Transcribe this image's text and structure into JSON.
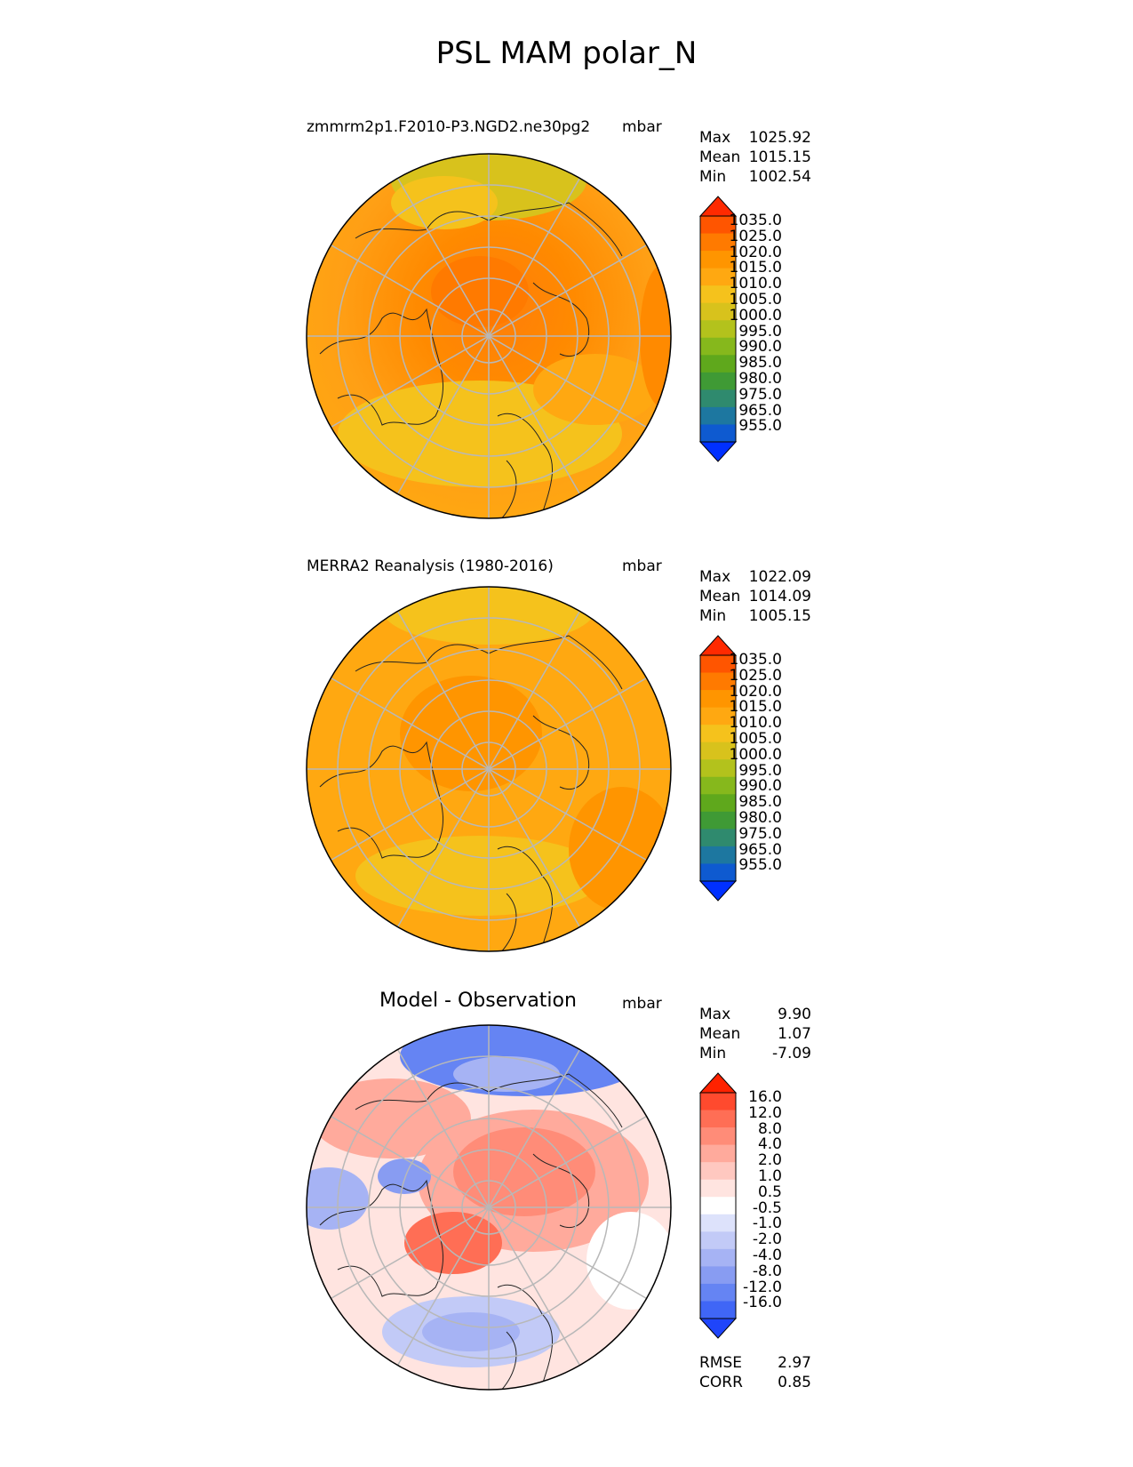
{
  "figure": {
    "title": "PSL MAM polar_N"
  },
  "panels": [
    {
      "id": "test",
      "title_left": "zmmrm2p1.F2010-P3.NGD2.ne30pg2",
      "title_right": "mbar",
      "stats": {
        "max_label": "Max",
        "max": "1025.92",
        "mean_label": "Mean",
        "mean": "1015.15",
        "min_label": "Min",
        "min": "1002.54"
      }
    },
    {
      "id": "reference",
      "title_left": "MERRA2 Reanalysis (1980-2016)",
      "title_right": "mbar",
      "stats": {
        "max_label": "Max",
        "max": "1022.09",
        "mean_label": "Mean",
        "mean": "1014.09",
        "min_label": "Min",
        "min": "1005.15"
      }
    },
    {
      "id": "diff",
      "title_center": "Model - Observation",
      "title_right": "mbar",
      "stats": {
        "max_label": "Max",
        "max": "9.90",
        "mean_label": "Mean",
        "mean": "1.07",
        "min_label": "Min",
        "min": "-7.09"
      },
      "metrics": {
        "rmse_label": "RMSE",
        "rmse": "2.97",
        "corr_label": "CORR",
        "corr": "0.85"
      }
    }
  ],
  "colorbars": {
    "field": {
      "labels": [
        "1035.0",
        "1025.0",
        "1020.0",
        "1015.0",
        "1010.0",
        "1005.0",
        "1000.0",
        "995.0",
        "990.0",
        "985.0",
        "980.0",
        "975.0",
        "965.0",
        "955.0"
      ],
      "colors": [
        "#ff2a00",
        "#ff5500",
        "#ff7a00",
        "#ff9500",
        "#ffa811",
        "#f5c21c",
        "#d8c21c",
        "#b3c21c",
        "#86b81c",
        "#5fa81c",
        "#3f9a35",
        "#2f8a6e",
        "#1d77a0",
        "#0e5ad0",
        "#0030ff"
      ]
    },
    "diff": {
      "labels": [
        "16.0",
        "12.0",
        "8.0",
        "4.0",
        "2.0",
        "1.0",
        "0.5",
        "-0.5",
        "-1.0",
        "-2.0",
        "-4.0",
        "-8.0",
        "-12.0",
        "-16.0"
      ],
      "colors": [
        "#ff2200",
        "#ff4a2e",
        "#ff6e55",
        "#ff8c78",
        "#ffaa9c",
        "#ffc8c0",
        "#ffe4e0",
        "#ffffff",
        "#dde2fb",
        "#c2caf7",
        "#a6b3f4",
        "#889cf2",
        "#6584f3",
        "#4066f6",
        "#1f45fa"
      ]
    }
  },
  "chart_data": [
    {
      "type": "heatmap",
      "title": "zmmrm2p1.F2010-P3.NGD2.ne30pg2",
      "projection": "north polar stereographic",
      "variable": "PSL",
      "season": "MAM",
      "units": "mbar",
      "levels": [
        955,
        965,
        975,
        980,
        985,
        990,
        995,
        1000,
        1005,
        1010,
        1015,
        1020,
        1025,
        1035
      ],
      "max": 1025.92,
      "mean": 1015.15,
      "min": 1002.54
    },
    {
      "type": "heatmap",
      "title": "MERRA2 Reanalysis (1980-2016)",
      "projection": "north polar stereographic",
      "variable": "PSL",
      "season": "MAM",
      "units": "mbar",
      "levels": [
        955,
        965,
        975,
        980,
        985,
        990,
        995,
        1000,
        1005,
        1010,
        1015,
        1020,
        1025,
        1035
      ],
      "max": 1022.09,
      "mean": 1014.09,
      "min": 1005.15
    },
    {
      "type": "heatmap",
      "title": "Model - Observation",
      "projection": "north polar stereographic",
      "variable": "PSL",
      "season": "MAM",
      "units": "mbar",
      "levels": [
        -16,
        -12,
        -8,
        -4,
        -2,
        -1,
        -0.5,
        0.5,
        1,
        2,
        4,
        8,
        12,
        16
      ],
      "max": 9.9,
      "mean": 1.07,
      "min": -7.09,
      "rmse": 2.97,
      "corr": 0.85
    }
  ]
}
